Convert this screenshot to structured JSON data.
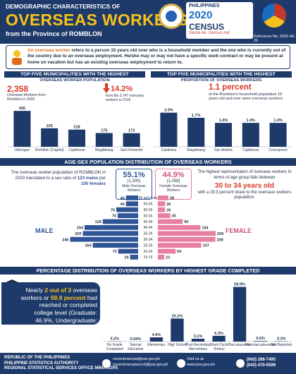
{
  "header": {
    "line1": "DEMOGRAPHIC CHARACTERISTICS OF",
    "title": "OVERSEAS WORKERS",
    "line3": "from the Province of ROMBLON",
    "census_top": "PHILIPPINES",
    "census_year": "2020",
    "census_word": "CENSUS",
    "census_sub": "of POPULATION and HOUSING",
    "census_tag": "Sama na, Census na!",
    "ref": "Reference No. 2025-40-26"
  },
  "definition": {
    "term": "An overseas worker",
    "text": " refers to a person 15 years old over who is a household member and the one who is currently out of the country due to an overseas employment. He/she may or may not have a specific work contract or may be present at home on vacation but has an existing overseas employment to return to."
  },
  "muni_count": {
    "header_line1": "TOP FIVE MUNICIPALITIES WITH THE HIGHEST",
    "header_line2": "OVERSEAS WORKER POPULATION",
    "stat_value": "2,358",
    "stat_text": "Overseas Workers from Romblon in 2020",
    "change_value": "14.2%",
    "change_text": "from the 2,747 overseas workers in 2015",
    "legend": "2020"
  },
  "muni_prop": {
    "header_line1": "TOP FIVE MUNICIPALITIES WITH THE HIGHEST",
    "header_line2": "PROPORTION OF OVERSEAS WORKERS",
    "stat_value": "1.1 percent",
    "stat_text": "of the Romblon's household population 15 years old and over were overseas workers."
  },
  "agesex": {
    "header": "AGE-SEX POPULATION DISTRIBUTION OF OVERSEAS WORKERS",
    "left_text1": "The overseas worker population of ROMBLON in 2020 translated to a sex ratio of",
    "left_ratio": "123 males",
    "left_text2": " per ",
    "left_ratio2": "100 females",
    "male_pct": "55.1%",
    "male_cnt": "(1,300)",
    "male_lab": "Male Overseas Workers",
    "female_pct": "44.9%",
    "female_cnt": "(1,058)",
    "female_lab": "Female Overseas Workers",
    "right_text1": "The highest representation of overseas workers in terms of age group falls between",
    "right_age": "30 to 34 years old",
    "right_text2": "with a 19.3 percent share to the overseas workers population.",
    "male_label": "MALE",
    "female_label": "FEMALE"
  },
  "education": {
    "header": "PERCENTAGE DISTRIBUTION OF OVERSEAS WORKERS BY HIGHEST GRADE COMPLETED",
    "note_pre": "Nearly ",
    "note_a": "2 out of 3",
    "note_mid": " overseas workers or ",
    "note_b": "59.9 percent",
    "note_post": " had reached or completed college level (Graduate: 46.9%, Undergraduate: 13.0%)."
  },
  "footer": {
    "org1": "REPUBLIC OF THE PHILIPPINES",
    "org2": "PHILIPPINE STATISTICS AUTHORITY",
    "org3": "REGIONAL STATISTICAL SERVICES OFFICE MIMAROPA",
    "email1": "rssomimaropa@psa.gov.ph",
    "email2": "rssomimaropasocd@psa.gov.ph",
    "web_lbl": "Visit us at",
    "web": "www.psa.gov.ph",
    "phone1": "(043) 286-7495",
    "phone2": "(043) 470-0599"
  },
  "colors": {
    "navy": "#1e3a6b",
    "gold": "#f6c21a",
    "red": "#d83a2a",
    "pink": "#e87fa0",
    "blue": "#2f5597"
  },
  "chart_data": [
    {
      "type": "bar",
      "categories": [
        "Odiongan",
        "Romblon (Capital)",
        "Cajidiocan",
        "Magdiwang",
        "San Fernando"
      ],
      "values": [
        456,
        235,
        218,
        175,
        173
      ],
      "ylim": [
        0,
        520
      ]
    },
    {
      "type": "bar",
      "categories": [
        "Calatrava",
        "Magdiwang",
        "San Andres",
        "Cajidiocan",
        "Concepcion"
      ],
      "values": [
        2.0,
        1.7,
        1.4,
        1.4,
        1.4
      ],
      "labels": [
        "2.0%",
        "1.7%",
        "1.4%",
        "1.4%",
        "1.4%"
      ],
      "ylim": [
        0,
        2.4
      ]
    },
    {
      "type": "bar",
      "orientation": "horizontal-pyramid",
      "categories": [
        "65 and over",
        "60-64",
        "55-59",
        "50-54",
        "45-49",
        "40-44",
        "35-39",
        "30-34",
        "25-29",
        "20-24",
        "15-19"
      ],
      "series": [
        {
          "name": "Male",
          "values": [
            44,
            44,
            79,
            74,
            128,
            194,
            200,
            246,
            164,
            72,
            29
          ]
        },
        {
          "name": "Female",
          "values": [
            38,
            26,
            26,
            45,
            90,
            154,
            209,
            208,
            157,
            64,
            23
          ]
        }
      ]
    },
    {
      "type": "bar",
      "categories": [
        "No Grade Completed",
        "Special Education",
        "Elementary",
        "High School",
        "Post-Secondary Non-tertiary",
        "Short-Cycle Tertiary",
        "Baccalaureate",
        "Post-baccalaureate",
        "Not Reported"
      ],
      "values": [
        0.2,
        0.04,
        4.6,
        25.2,
        3.1,
        6.3,
        59.9,
        0.6,
        0.3
      ],
      "labels": [
        "0.2%",
        "0.04%",
        "4.6%",
        "25.2%",
        "3.1%",
        "6.3%",
        "59.9%",
        "0.6%",
        "0.3%"
      ],
      "ylim": [
        0,
        65
      ]
    }
  ]
}
